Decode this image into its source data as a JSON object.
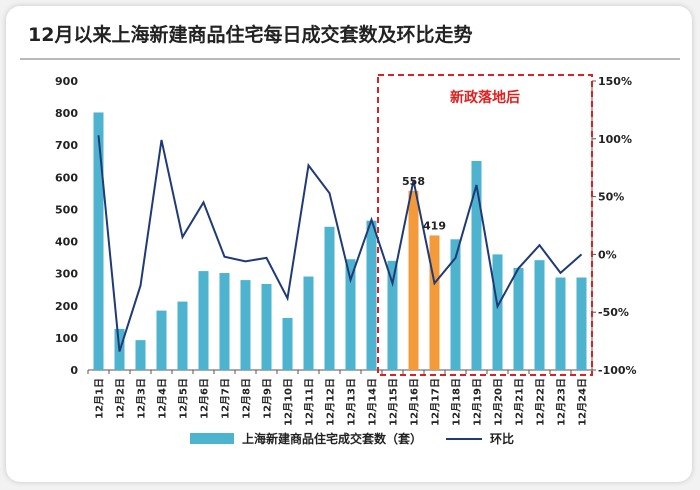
{
  "title": "12月以来上海新建商品住宅每日成交套数及环比走势",
  "annotation": "新政落地后",
  "legend": {
    "bar": "上海新建商品住宅成交套数（套）",
    "line": "环比"
  },
  "colors": {
    "bar": "#4db3cf",
    "bar_highlight": "#f39a3b",
    "line": "#1f3a77",
    "annotation_box": "#e02020"
  },
  "chart_data": {
    "type": "bar",
    "categories": [
      "12月1日",
      "12月2日",
      "12月3日",
      "12月4日",
      "12月5日",
      "12月6日",
      "12月7日",
      "12月8日",
      "12月9日",
      "12月10日",
      "12月11日",
      "12月12日",
      "12月13日",
      "12月14日",
      "12月15日",
      "12月16日",
      "12月17日",
      "12月18日",
      "12月19日",
      "12月20日",
      "12月21日",
      "12月22日",
      "12月23日",
      "12月24日"
    ],
    "series": [
      {
        "name": "上海新建商品住宅成交套数（套）",
        "type": "bar",
        "axis": "left",
        "values": [
          802,
          128,
          93,
          185,
          213,
          308,
          302,
          280,
          268,
          162,
          291,
          446,
          345,
          465,
          340,
          558,
          419,
          407,
          651,
          360,
          318,
          342,
          288,
          288
        ]
      },
      {
        "name": "环比",
        "type": "line",
        "axis": "right",
        "values": [
          103,
          -84,
          -27,
          99,
          15,
          45,
          -2,
          -6,
          -3,
          -38,
          77,
          53,
          -22,
          30,
          -25,
          64,
          -25,
          -3,
          60,
          -45,
          -12,
          8,
          -16,
          0
        ]
      }
    ],
    "data_labels": [
      {
        "index": 15,
        "text": "558"
      },
      {
        "index": 16,
        "text": "419"
      }
    ],
    "highlight_indices": [
      15,
      16
    ],
    "annotated_range": [
      14,
      23
    ],
    "left_axis": {
      "min": 0,
      "max": 900,
      "ticks": [
        0,
        100,
        200,
        300,
        400,
        500,
        600,
        700,
        800,
        900
      ]
    },
    "right_axis": {
      "min": -100,
      "max": 150,
      "ticks": [
        "-100%",
        "-50%",
        "0%",
        "50%",
        "100%",
        "150%"
      ]
    },
    "grid": false,
    "legend_position": "bottom"
  }
}
